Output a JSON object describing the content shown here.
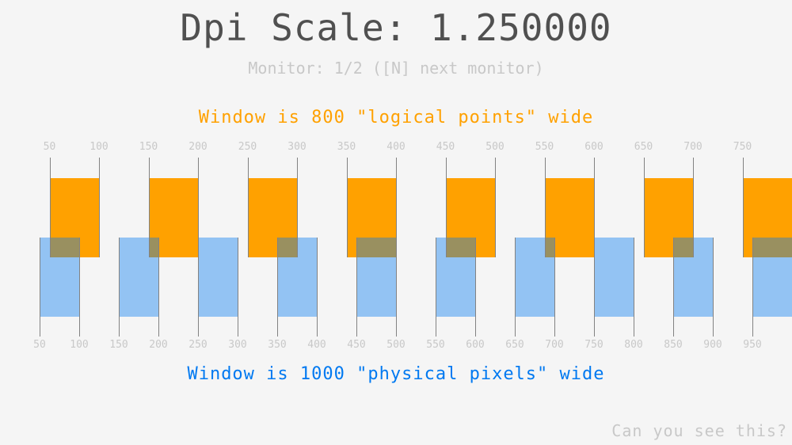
{
  "title": "Dpi Scale: 1.250000",
  "monitor_text": "Monitor: 1/2 ([N] next monitor)",
  "logical_text": "Window is 800 \"logical points\" wide",
  "physical_text": "Window is 1000 \"physical pixels\" wide",
  "bottom_text": "Can you see this?",
  "dpi_scale": 1.25,
  "logical_ticks": [
    "50",
    "100",
    "150",
    "200",
    "250",
    "300",
    "350",
    "400",
    "450",
    "500",
    "550",
    "600",
    "650",
    "700",
    "750"
  ],
  "physical_ticks": [
    "50",
    "100",
    "150",
    "200",
    "250",
    "300",
    "350",
    "400",
    "450",
    "500",
    "550",
    "600",
    "650",
    "700",
    "750",
    "800",
    "850",
    "900",
    "950"
  ],
  "colors": {
    "logical": "#ffa100",
    "physical": "#0079f1",
    "title": "#505050",
    "muted": "#c8c8c8"
  }
}
